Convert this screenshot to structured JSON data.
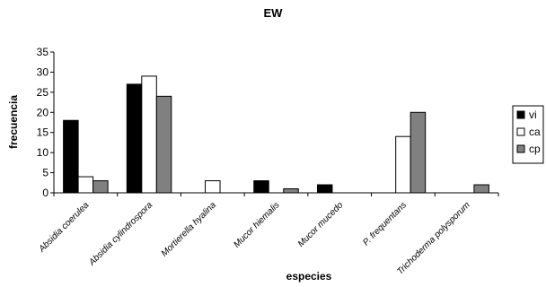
{
  "chart_data": {
    "type": "bar",
    "title": "EW",
    "xlabel": "especies",
    "ylabel": "frecuencia",
    "ylim": [
      0,
      35
    ],
    "yticks": [
      0,
      5,
      10,
      15,
      20,
      25,
      30,
      35
    ],
    "grid": false,
    "legend_position": "right",
    "categories": [
      "Absidia coerulea",
      "Absidia cylindrospora",
      "Mortierella hyalina",
      "Mucor hiemalis",
      "Mucor mucedo",
      "P. frequentans",
      "Trichoderma polysporum"
    ],
    "series": [
      {
        "name": "vi",
        "color": "#000000",
        "values": [
          18,
          27,
          0,
          3,
          2,
          0,
          0
        ]
      },
      {
        "name": "ca",
        "color": "#ffffff",
        "values": [
          4,
          29,
          3,
          0,
          0,
          14,
          0
        ]
      },
      {
        "name": "cp",
        "color": "#808080",
        "values": [
          3,
          24,
          0,
          1,
          0,
          20,
          2
        ]
      }
    ]
  }
}
